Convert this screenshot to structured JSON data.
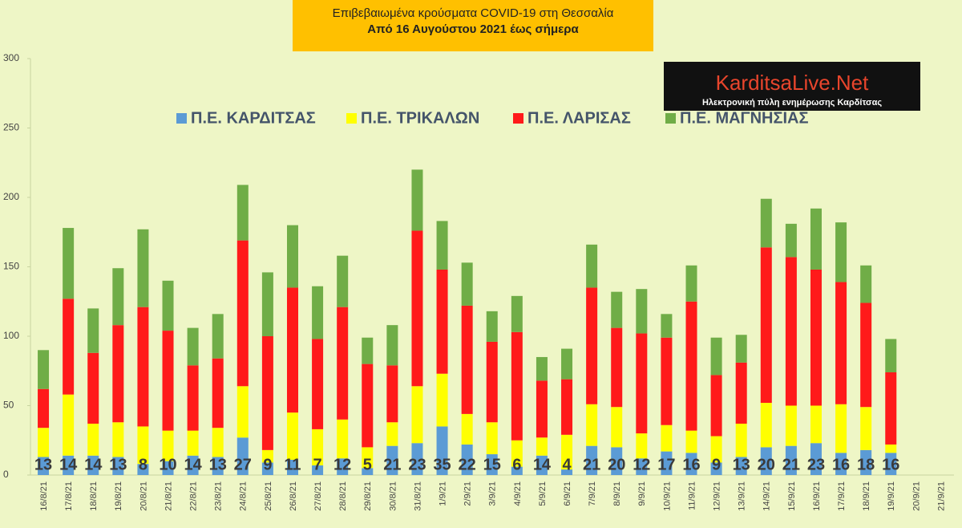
{
  "chart_data": {
    "type": "stacked-bar",
    "title": "Επιβεβαιωμένα κρούσματα COVID-19 στη Θεσσαλία",
    "subtitle": "Από 16 Αυγούστου 2021 έως σήμερα",
    "categories": [
      "16/8/21",
      "17/8/21",
      "18/8/21",
      "19/8/21",
      "20/8/21",
      "21/8/21",
      "22/8/21",
      "23/8/21",
      "24/8/21",
      "25/8/21",
      "26/8/21",
      "27/8/21",
      "28/8/21",
      "29/8/21",
      "30/8/21",
      "31/8/21",
      "1/9/21",
      "2/9/21",
      "3/9/21",
      "4/9/21",
      "5/9/21",
      "6/9/21",
      "7/9/21",
      "8/9/21",
      "9/9/21",
      "10/9/21",
      "11/9/21",
      "12/9/21",
      "13/9/21",
      "14/9/21",
      "15/9/21",
      "16/9/21",
      "17/9/21",
      "18/9/21",
      "19/9/21",
      "20/9/21",
      "21/9/21"
    ],
    "series": [
      {
        "name": "Π.Ε. ΚΑΡΔΙΤΣΑΣ",
        "color": "#5b9bd5",
        "values": [
          13,
          14,
          14,
          13,
          8,
          10,
          14,
          13,
          27,
          9,
          11,
          7,
          12,
          5,
          21,
          23,
          35,
          22,
          15,
          6,
          14,
          4,
          21,
          20,
          12,
          17,
          16,
          9,
          13,
          20,
          21,
          23,
          16,
          18,
          16,
          null,
          null
        ]
      },
      {
        "name": "Π.Ε. ΤΡΙΚΑΛΩΝ",
        "color": "#ffff00",
        "values": [
          21,
          44,
          23,
          25,
          27,
          22,
          18,
          21,
          37,
          9,
          34,
          26,
          28,
          15,
          17,
          41,
          38,
          22,
          23,
          19,
          13,
          25,
          30,
          29,
          18,
          19,
          16,
          19,
          24,
          32,
          29,
          27,
          35,
          31,
          6,
          null,
          null
        ]
      },
      {
        "name": "Π.Ε. ΛΑΡΙΣΑΣ",
        "color": "#ff1a1a",
        "values": [
          28,
          69,
          51,
          70,
          86,
          72,
          47,
          50,
          105,
          82,
          90,
          65,
          81,
          60,
          41,
          112,
          75,
          78,
          58,
          78,
          41,
          40,
          84,
          57,
          72,
          63,
          93,
          44,
          44,
          112,
          107,
          98,
          88,
          75,
          52,
          null,
          null
        ]
      },
      {
        "name": "Π.Ε. ΜΑΓΝΗΣΙΑΣ",
        "color": "#70ad47",
        "values": [
          28,
          51,
          32,
          41,
          56,
          36,
          27,
          32,
          40,
          46,
          45,
          38,
          37,
          19,
          29,
          44,
          35,
          31,
          22,
          26,
          17,
          22,
          31,
          26,
          32,
          17,
          26,
          27,
          20,
          35,
          24,
          44,
          43,
          27,
          24,
          null,
          null
        ]
      }
    ],
    "ylim": [
      0,
      300
    ],
    "yticks": [
      0,
      50,
      100,
      150,
      200,
      250,
      300
    ],
    "grid": false
  },
  "logo": {
    "title": "KarditsaLive.Net",
    "subtitle": "Ηλεκτρονική πύλη ενημέρωσης Καρδίτσας"
  }
}
